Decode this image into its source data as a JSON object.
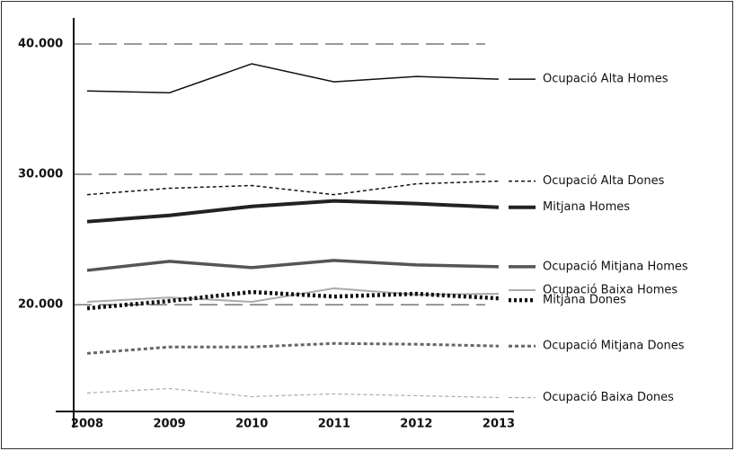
{
  "chart_data": {
    "type": "line",
    "categories": [
      "2008",
      "2009",
      "2010",
      "2011",
      "2012",
      "2013"
    ],
    "ylim": [
      11800,
      42000
    ],
    "yticks": [
      {
        "value": 20000,
        "label": "20.000"
      },
      {
        "value": 30000,
        "label": "30.000"
      },
      {
        "value": 40000,
        "label": "40.000"
      }
    ],
    "grid": true,
    "series": [
      {
        "name": "Ocupació Alta Homes",
        "color": "#111111",
        "values": [
          36400,
          36260,
          38480,
          37100,
          37510,
          37300
        ]
      },
      {
        "name": "Ocupació Alta Dones",
        "color": "#111111",
        "values": [
          28440,
          28930,
          29140,
          28440,
          29270,
          29480
        ]
      },
      {
        "name": "Mitjana Homes",
        "color": "#222222",
        "values": [
          26370,
          26850,
          27540,
          27960,
          27750,
          27470
        ]
      },
      {
        "name": "Ocupació Mitjana Homes",
        "color": "#555555",
        "values": [
          22630,
          23320,
          22840,
          23390,
          23050,
          22910
        ]
      },
      {
        "name": "Ocupació Baixa Homes",
        "color": "#aaaaaa",
        "values": [
          20210,
          20550,
          20210,
          21250,
          20760,
          20830
        ]
      },
      {
        "name": "Mitjana Dones",
        "color": "#111111",
        "values": [
          19720,
          20280,
          20970,
          20620,
          20830,
          20480
        ]
      },
      {
        "name": "Ocupació Mitjana Dones",
        "color": "#666666",
        "values": [
          16260,
          16750,
          16750,
          17020,
          16960,
          16820
        ]
      },
      {
        "name": "Ocupació Baixa Dones",
        "color": "#aaaaaa",
        "values": [
          13220,
          13560,
          12940,
          13150,
          13010,
          12870
        ]
      }
    ]
  }
}
